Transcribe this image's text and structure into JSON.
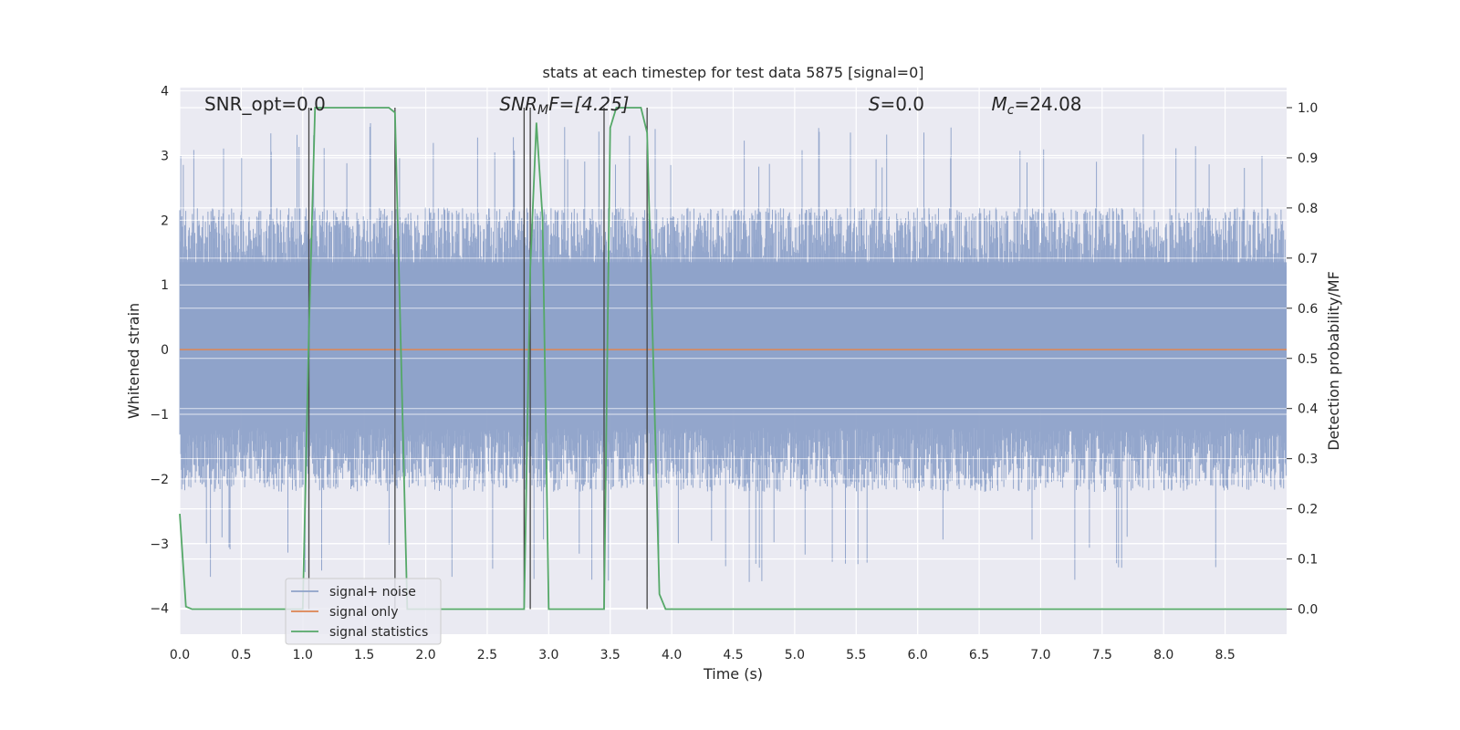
{
  "chart_data": {
    "type": "line",
    "title": "stats at each timestep for test data 5875 [signal=0]",
    "xlabel": "Time (s)",
    "ylabel_left": "Whitened strain",
    "ylabel_right": "Detection probability/MF",
    "xlim": [
      0,
      9.0
    ],
    "ylim_left": [
      -4.4,
      4.05
    ],
    "ylim_right": [
      -0.05,
      1.04
    ],
    "x_ticks": [
      "0.0",
      "0.5",
      "1.0",
      "1.5",
      "2.0",
      "2.5",
      "3.0",
      "3.5",
      "4.0",
      "4.5",
      "5.0",
      "5.5",
      "6.0",
      "6.5",
      "7.0",
      "7.5",
      "8.0",
      "8.5"
    ],
    "y_left_ticks": [
      "4",
      "3",
      "2",
      "1",
      "0",
      "−1",
      "−2",
      "−3",
      "−4"
    ],
    "y_right_ticks": [
      "1.0",
      "0.9",
      "0.8",
      "0.7",
      "0.6",
      "0.5",
      "0.4",
      "0.3",
      "0.2",
      "0.1",
      "0.0"
    ],
    "grid": true,
    "legend_placement": "lower-left",
    "annotations": [
      {
        "text": "SNR_opt=0.0",
        "x": 0.2
      },
      {
        "html": "SNR<sub>M</sub>F=[4.25]",
        "base": "SNR",
        "sub": "M",
        "rest": "F=[4.25]",
        "x": 2.6
      },
      {
        "html": "S=0.0",
        "base": "S",
        "sub": "",
        "rest": "=0.0",
        "x": 5.6
      },
      {
        "html": "M_c=24.08",
        "base": "M",
        "sub": "c",
        "rest": "=24.08",
        "x": 6.6
      }
    ],
    "series": [
      {
        "name": "signal+ noise",
        "color": "#8ea2c9",
        "axis": "left",
        "description_values": "whitened strain noise, roughly uniform amplitude about ±2 with peaks to ±3.5",
        "envelope": {
          "upper_typical": 2.2,
          "lower_typical": -2.2,
          "upper_peak": 3.5,
          "lower_peak": -3.6
        }
      },
      {
        "name": "signal only",
        "color": "#dd8452",
        "axis": "left",
        "x": [
          0.0,
          9.0
        ],
        "y": [
          0.0,
          0.0
        ]
      },
      {
        "name": "signal statistics",
        "color": "#55a868",
        "axis": "right",
        "x": [
          0.0,
          0.05,
          0.1,
          1.0,
          1.05,
          1.1,
          1.15,
          1.7,
          1.75,
          1.8,
          1.85,
          2.75,
          2.8,
          2.85,
          2.9,
          2.95,
          3.0,
          3.05,
          3.45,
          3.5,
          3.55,
          3.6,
          3.7,
          3.75,
          3.8,
          3.85,
          3.9,
          3.95,
          4.0,
          9.0
        ],
        "y": [
          0.19,
          0.005,
          0.0,
          0.0,
          0.55,
          1.0,
          1.0,
          1.0,
          0.99,
          0.5,
          0.0,
          0.0,
          0.0,
          0.68,
          0.97,
          0.78,
          0.0,
          0.0,
          0.0,
          0.96,
          1.0,
          1.0,
          1.0,
          1.0,
          0.95,
          0.5,
          0.03,
          0.0,
          0.0,
          0.0
        ]
      }
    ],
    "vertical_markers_x": [
      1.05,
      1.75,
      2.8,
      2.85,
      3.45,
      3.8
    ],
    "marker_y_range_right": [
      0.0,
      1.0
    ]
  }
}
